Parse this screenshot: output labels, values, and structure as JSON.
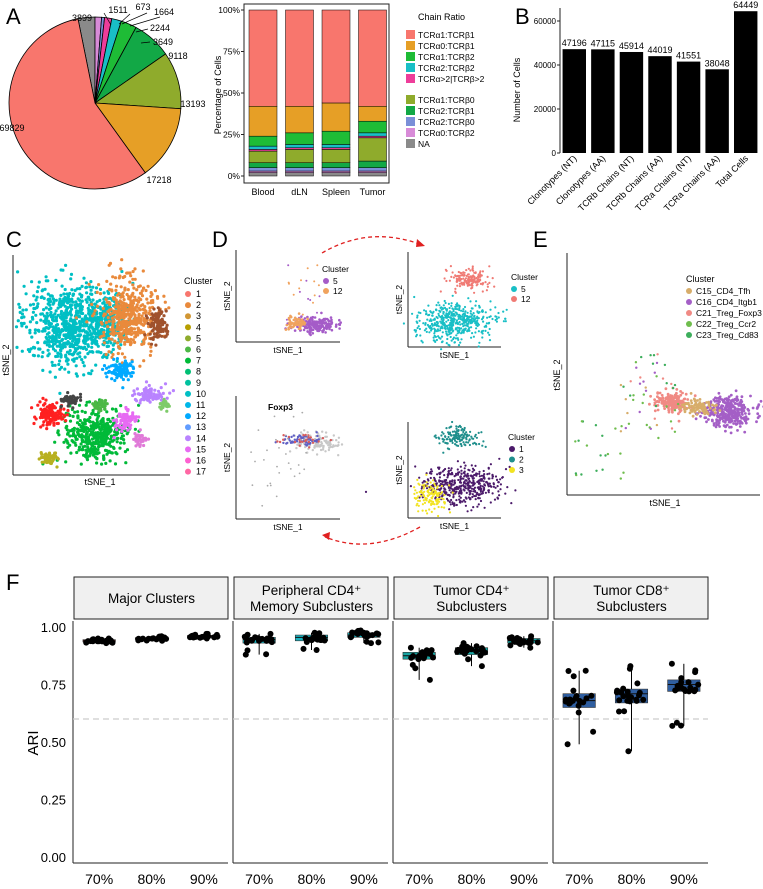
{
  "panel_letters": {
    "A": "A",
    "B": "B",
    "C": "C",
    "D": "D",
    "E": "E",
    "F": "F"
  },
  "colors": {
    "tcr11": "#f8766d",
    "tcr01": "#e69f26",
    "tcr12": "#1ebc36",
    "tcr22": "#19bfc6",
    "tcrgt2": "#ee3d9a",
    "tcr10": "#8fab2c",
    "tcr21": "#12a846",
    "tcr20": "#7a8fd8",
    "tcr02": "#d88bd8",
    "na": "#8a8a8a",
    "bar": "#000000",
    "peripheral": "#19b3c0",
    "tumor_cd4": "#17a3a1",
    "tumor_cd8": "#2f5ea0",
    "major": "#b33a3a"
  },
  "chart_data": [
    {
      "id": "A-pie",
      "type": "pie",
      "values": [
        69829,
        17218,
        13193,
        9118,
        3649,
        2244,
        1664,
        673,
        1511,
        3899
      ],
      "labels": [
        "69829",
        "17218",
        "13193",
        "9118",
        "3649",
        "2244",
        "1664",
        "673",
        "1511",
        "3899"
      ],
      "keys": [
        "tcr11",
        "tcr01",
        "tcr10",
        "tcr21",
        "tcr12",
        "tcr22",
        "tcrgt2",
        "tcr20",
        "tcr02",
        "na"
      ]
    },
    {
      "id": "A-stacked",
      "type": "bar",
      "categories": [
        "Blood",
        "dLN",
        "Spleen",
        "Tumor"
      ],
      "ylabel": "Percentage of Cells",
      "yticks": [
        "0%",
        "25%",
        "50%",
        "75%",
        "100%"
      ],
      "legend_title": "Chain Ratio",
      "legend": [
        "TCRα1:TCRβ1",
        "TCRα0:TCRβ1",
        "TCRα1:TCRβ2",
        "TCRα2:TCRβ2",
        "TCRα>2|TCRβ>2",
        "TCRα1:TCRβ0",
        "TCRα2:TCRβ1",
        "TCRα2:TCRβ0",
        "TCRα0:TCRβ2",
        "NA"
      ],
      "legend_keys": [
        "tcr11",
        "tcr01",
        "tcr12",
        "tcr22",
        "tcrgt2",
        "tcr10",
        "tcr21",
        "tcr20",
        "tcr02",
        "na"
      ],
      "stack_order": [
        "na",
        "tcr02",
        "tcr20",
        "tcr21",
        "tcr10",
        "tcrgt2",
        "tcr22",
        "tcr12",
        "tcr01",
        "tcr11"
      ],
      "series": [
        {
          "category": "Blood",
          "values": {
            "na": 2,
            "tcr02": 1,
            "tcr20": 2,
            "tcr21": 3,
            "tcr10": 7,
            "tcrgt2": 1,
            "tcr22": 2,
            "tcr12": 6,
            "tcr01": 18,
            "tcr11": 58
          }
        },
        {
          "category": "dLN",
          "values": {
            "na": 2,
            "tcr02": 1,
            "tcr20": 2,
            "tcr21": 3,
            "tcr10": 8,
            "tcrgt2": 1,
            "tcr22": 2,
            "tcr12": 7,
            "tcr01": 16,
            "tcr11": 58
          }
        },
        {
          "category": "Spleen",
          "values": {
            "na": 2,
            "tcr02": 1,
            "tcr20": 2,
            "tcr21": 3,
            "tcr10": 8,
            "tcrgt2": 1,
            "tcr22": 2,
            "tcr12": 8,
            "tcr01": 17,
            "tcr11": 56
          }
        },
        {
          "category": "Tumor",
          "values": {
            "na": 2,
            "tcr02": 1,
            "tcr20": 2,
            "tcr21": 4,
            "tcr10": 14,
            "tcrgt2": 1,
            "tcr22": 2,
            "tcr12": 7,
            "tcr01": 9,
            "tcr11": 58
          }
        }
      ]
    },
    {
      "id": "B-bars",
      "type": "bar",
      "categories": [
        "Clonotypes (NT)",
        "Clonotypes (AA)",
        "TCRb Chains (NT)",
        "TCRb Chains (AA)",
        "TCRa Chains (NT)",
        "TCRa Chains (AA)",
        "Total Cells"
      ],
      "values": [
        47196,
        47115,
        45914,
        44019,
        41551,
        38048,
        64449
      ],
      "value_labels": [
        "47196",
        "47115",
        "45914",
        "44019",
        "41551",
        "38048",
        "64449"
      ],
      "ylabel": "Number of Cells",
      "ylim": [
        0,
        65000
      ],
      "yticks": [
        0,
        20000,
        40000,
        60000
      ],
      "ytick_labels": [
        "0",
        "20000",
        "40000",
        "60000"
      ]
    },
    {
      "id": "F-boxplots",
      "type": "scatter",
      "ylabel": "ARI",
      "ylim": [
        0,
        1.0
      ],
      "yticks": [
        0,
        0.25,
        0.5,
        0.75,
        1.0
      ],
      "ytick_labels": [
        "0.00",
        "0.25",
        "0.50",
        "0.75",
        "1.00"
      ],
      "reference_line": 0.6,
      "facets": [
        {
          "title_lines": [
            "Major Clusters"
          ],
          "color_key": "major",
          "groups": [
            {
              "x": "70%",
              "q1": 0.935,
              "median": 0.94,
              "q3": 0.945,
              "min": 0.93,
              "max": 0.95
            },
            {
              "x": "80%",
              "q1": 0.946,
              "median": 0.95,
              "q3": 0.954,
              "min": 0.94,
              "max": 0.96
            },
            {
              "x": "90%",
              "q1": 0.955,
              "median": 0.96,
              "q3": 0.964,
              "min": 0.95,
              "max": 0.97
            }
          ]
        },
        {
          "title_lines": [
            "Peripheral CD4⁺",
            "Memory Subclusters"
          ],
          "color_key": "peripheral",
          "groups": [
            {
              "x": "70%",
              "q1": 0.93,
              "median": 0.945,
              "q3": 0.955,
              "min": 0.88,
              "max": 0.97
            },
            {
              "x": "80%",
              "q1": 0.94,
              "median": 0.955,
              "q3": 0.965,
              "min": 0.9,
              "max": 0.975
            },
            {
              "x": "90%",
              "q1": 0.955,
              "median": 0.965,
              "q3": 0.975,
              "min": 0.93,
              "max": 0.985
            }
          ]
        },
        {
          "title_lines": [
            "Tumor CD4⁺",
            "Subclusters"
          ],
          "color_key": "tumor_cd4",
          "groups": [
            {
              "x": "70%",
              "q1": 0.86,
              "median": 0.875,
              "q3": 0.89,
              "min": 0.77,
              "max": 0.91
            },
            {
              "x": "80%",
              "q1": 0.88,
              "median": 0.895,
              "q3": 0.91,
              "min": 0.83,
              "max": 0.93
            },
            {
              "x": "90%",
              "q1": 0.93,
              "median": 0.94,
              "q3": 0.95,
              "min": 0.91,
              "max": 0.96
            }
          ]
        },
        {
          "title_lines": [
            "Tumor CD8⁺",
            "Subclusters"
          ],
          "color_key": "tumor_cd8",
          "groups": [
            {
              "x": "70%",
              "q1": 0.65,
              "median": 0.68,
              "q3": 0.71,
              "min": 0.49,
              "max": 0.81
            },
            {
              "x": "80%",
              "q1": 0.67,
              "median": 0.71,
              "q3": 0.73,
              "min": 0.46,
              "max": 0.83
            },
            {
              "x": "90%",
              "q1": 0.72,
              "median": 0.75,
              "q3": 0.77,
              "min": 0.57,
              "max": 0.84
            }
          ]
        }
      ]
    }
  ],
  "panelC": {
    "xlabel": "tSNE_1",
    "ylabel": "tSNE_2",
    "legend_title": "Cluster",
    "clusters": [
      "1",
      "2",
      "3",
      "4",
      "5",
      "6",
      "7",
      "8",
      "9",
      "10",
      "11",
      "12",
      "13",
      "14",
      "15",
      "16",
      "17"
    ],
    "cluster_colors": [
      "#f8766d",
      "#e98a3c",
      "#d19634",
      "#b79f00",
      "#8fab2c",
      "#4db846",
      "#00ba38",
      "#00bf74",
      "#00c19f",
      "#00bfc4",
      "#00b7e8",
      "#00a9ff",
      "#619cff",
      "#b983ff",
      "#e76bf3",
      "#fd61d1",
      "#ff67a4"
    ]
  },
  "panelD": {
    "top_left": {
      "xlabel": "tSNE_1",
      "ylabel": "tSNE_2",
      "legend_title": "Cluster",
      "legend": [
        "5",
        "12"
      ],
      "colors": [
        "#a55cc8",
        "#f0a35e"
      ]
    },
    "top_right": {
      "xlabel": "tSNE_1",
      "ylabel": "tSNE_2",
      "legend_title": "Cluster",
      "legend": [
        "5",
        "12"
      ],
      "colors": [
        "#19bfc6",
        "#f07a74"
      ]
    },
    "bottom_left": {
      "xlabel": "tSNE_1",
      "ylabel": "tSNE_2",
      "title": "Foxp3"
    },
    "bottom_right": {
      "xlabel": "tSNE_1",
      "ylabel": "tSNE_2",
      "legend_title": "Cluster",
      "legend": [
        "1",
        "2",
        "3"
      ],
      "colors": [
        "#4b1a6a",
        "#1f8f8c",
        "#f2e321"
      ]
    }
  },
  "panelE": {
    "xlabel": "tSNE_1",
    "ylabel": "tSNE_2",
    "legend_title": "Cluster",
    "legend": [
      "C15_CD4_Tfh",
      "C16_CD4_Itgb1",
      "C21_Treg_Foxp3",
      "C22_Treg_Ccr2",
      "C23_Treg_Cd83"
    ],
    "colors": [
      "#d7ad6a",
      "#a45fc6",
      "#f08a84",
      "#6fbd4d",
      "#3dae5c"
    ]
  }
}
